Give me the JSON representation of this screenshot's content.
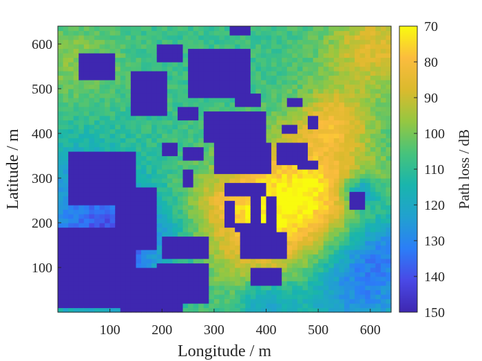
{
  "chart_data": {
    "type": "heatmap",
    "title": "",
    "xlabel": "Longitude / m",
    "ylabel": "Latitude / m",
    "xlim": [
      0,
      640
    ],
    "ylim": [
      0,
      640
    ],
    "x_ticks": [
      100,
      200,
      300,
      400,
      500,
      600
    ],
    "y_ticks": [
      100,
      200,
      300,
      400,
      500,
      600
    ],
    "grid": false,
    "grid_cells": 64,
    "cell_size_m": 10,
    "colorbar": {
      "label": "Path loss / dB",
      "min": 70,
      "max": 150,
      "direction": "reversed",
      "ticks": [
        70,
        80,
        90,
        100,
        110,
        120,
        130,
        140,
        150
      ],
      "colormap": [
        "#f9fb0e",
        "#fbbc3e",
        "#dbba2d",
        "#95c741",
        "#47c37b",
        "#19b5ad",
        "#21a1cf",
        "#2b7ef7",
        "#4949e6",
        "#3e27b0"
      ]
    },
    "base_path_loss_dB": 108,
    "buildings_path_loss_dB": 150,
    "hotspots": [
      {
        "x": 470,
        "y": 260,
        "sigma": 95,
        "delta_dB": -38
      },
      {
        "x": 610,
        "y": 590,
        "sigma": 70,
        "delta_dB": -22
      },
      {
        "x": 530,
        "y": 430,
        "sigma": 50,
        "delta_dB": -20
      },
      {
        "x": 380,
        "y": 120,
        "sigma": 70,
        "delta_dB": -16
      },
      {
        "x": 330,
        "y": 240,
        "sigma": 55,
        "delta_dB": -14
      },
      {
        "x": 40,
        "y": 560,
        "sigma": 60,
        "delta_dB": -10
      },
      {
        "x": 220,
        "y": 240,
        "sigma": 60,
        "delta_dB": -6
      },
      {
        "x": 60,
        "y": 120,
        "sigma": 90,
        "delta_dB": 26
      },
      {
        "x": 150,
        "y": 200,
        "sigma": 70,
        "delta_dB": 18
      },
      {
        "x": 580,
        "y": 60,
        "sigma": 80,
        "delta_dB": 22
      },
      {
        "x": 620,
        "y": 160,
        "sigma": 60,
        "delta_dB": 16
      },
      {
        "x": 580,
        "y": 270,
        "sigma": 25,
        "delta_dB": 30
      },
      {
        "x": 400,
        "y": 30,
        "sigma": 40,
        "delta_dB": 18
      },
      {
        "x": 40,
        "y": 300,
        "sigma": 70,
        "delta_dB": 12
      }
    ],
    "buildings": [
      {
        "x": [
          20,
          150
        ],
        "y": [
          240,
          360
        ]
      },
      {
        "x": [
          140,
          210
        ],
        "y": [
          440,
          540
        ]
      },
      {
        "x": [
          250,
          370
        ],
        "y": [
          480,
          590
        ]
      },
      {
        "x": [
          0,
          150
        ],
        "y": [
          10,
          190
        ]
      },
      {
        "x": [
          150,
          240
        ],
        "y": [
          0,
          100
        ]
      },
      {
        "x": [
          110,
          190
        ],
        "y": [
          140,
          280
        ]
      },
      {
        "x": [
          190,
          290
        ],
        "y": [
          20,
          110
        ]
      },
      {
        "x": [
          200,
          290
        ],
        "y": [
          120,
          170
        ]
      },
      {
        "x": [
          350,
          440
        ],
        "y": [
          120,
          180
        ]
      },
      {
        "x": [
          370,
          430
        ],
        "y": [
          60,
          100
        ]
      },
      {
        "x": [
          280,
          400
        ],
        "y": [
          380,
          450
        ]
      },
      {
        "x": [
          300,
          410
        ],
        "y": [
          310,
          380
        ]
      },
      {
        "x": [
          340,
          390
        ],
        "y": [
          460,
          490
        ]
      },
      {
        "x": [
          320,
          400
        ],
        "y": [
          260,
          290
        ]
      },
      {
        "x": [
          320,
          340
        ],
        "y": [
          190,
          250
        ]
      },
      {
        "x": [
          370,
          390
        ],
        "y": [
          180,
          260
        ]
      },
      {
        "x": [
          400,
          420
        ],
        "y": [
          190,
          260
        ]
      },
      {
        "x": [
          340,
          420
        ],
        "y": [
          180,
          200
        ]
      },
      {
        "x": [
          420,
          480
        ],
        "y": [
          330,
          380
        ]
      },
      {
        "x": [
          460,
          500
        ],
        "y": [
          320,
          340
        ]
      },
      {
        "x": [
          440,
          470
        ],
        "y": [
          460,
          480
        ]
      },
      {
        "x": [
          430,
          460
        ],
        "y": [
          400,
          420
        ]
      },
      {
        "x": [
          480,
          500
        ],
        "y": [
          410,
          440
        ]
      },
      {
        "x": [
          560,
          590
        ],
        "y": [
          230,
          270
        ]
      },
      {
        "x": [
          40,
          110
        ],
        "y": [
          520,
          580
        ]
      },
      {
        "x": [
          190,
          240
        ],
        "y": [
          560,
          600
        ]
      },
      {
        "x": [
          200,
          230
        ],
        "y": [
          350,
          380
        ]
      },
      {
        "x": [
          240,
          280
        ],
        "y": [
          340,
          370
        ]
      },
      {
        "x": [
          240,
          260
        ],
        "y": [
          280,
          320
        ]
      },
      {
        "x": [
          120,
          150
        ],
        "y": [
          0,
          40
        ]
      },
      {
        "x": [
          330,
          370
        ],
        "y": [
          620,
          640
        ]
      },
      {
        "x": [
          230,
          270
        ],
        "y": [
          430,
          460
        ]
      }
    ]
  }
}
